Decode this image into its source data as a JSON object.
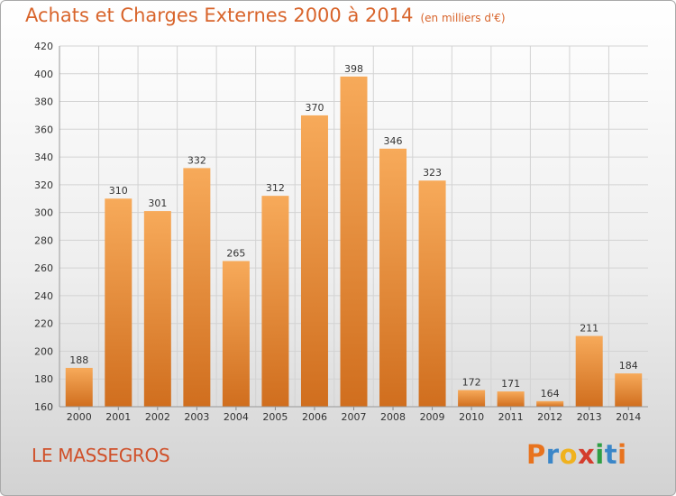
{
  "title": "Achats et Charges Externes 2000 à 2014",
  "subtitle": "(en milliers d'€)",
  "commune": "LE MASSEGROS",
  "brand": {
    "letters": [
      "P",
      "r",
      "o",
      "x",
      "i",
      "t",
      "i"
    ],
    "colors": [
      "#e8731e",
      "#3a86c8",
      "#f0b21e",
      "#d43c2c",
      "#2f9e44",
      "#3a86c8",
      "#e8731e"
    ]
  },
  "colors": {
    "title": "#d8642b",
    "bar_top": "#f7aa5a",
    "bar_bottom": "#d06e1e",
    "commune": "#d0502a"
  },
  "chart_data": {
    "type": "bar",
    "categories": [
      "2000",
      "2001",
      "2002",
      "2003",
      "2004",
      "2005",
      "2006",
      "2007",
      "2008",
      "2009",
      "2010",
      "2011",
      "2012",
      "2013",
      "2014"
    ],
    "values": [
      188,
      310,
      301,
      332,
      265,
      312,
      370,
      398,
      346,
      323,
      172,
      171,
      164,
      211,
      184
    ],
    "title": "Achats et Charges Externes 2000 à 2014",
    "subtitle": "(en milliers d'€)",
    "ylim": [
      160,
      420
    ],
    "yticks": [
      160,
      180,
      200,
      220,
      240,
      260,
      280,
      300,
      320,
      340,
      360,
      380,
      400,
      420
    ],
    "grid": true,
    "data_labels": true
  }
}
